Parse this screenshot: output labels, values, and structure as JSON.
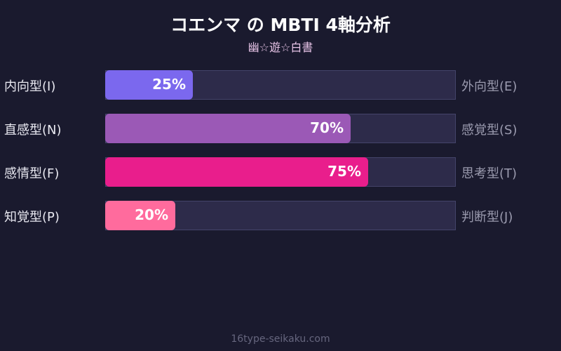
{
  "chart_data": {
    "type": "bar",
    "orientation": "horizontal",
    "title": "コエンマ の MBTI 4軸分析",
    "subtitle": "幽☆遊☆白書",
    "xlim": [
      0,
      100
    ],
    "rows": [
      {
        "left_label": "内向型(I)",
        "right_label": "外向型(E)",
        "value": 25,
        "value_label": "25%",
        "color": "#7b68ee"
      },
      {
        "left_label": "直感型(N)",
        "right_label": "感覚型(S)",
        "value": 70,
        "value_label": "70%",
        "color": "#9b59b6"
      },
      {
        "left_label": "感情型(F)",
        "right_label": "思考型(T)",
        "value": 75,
        "value_label": "75%",
        "color": "#e91e8c"
      },
      {
        "left_label": "知覚型(P)",
        "right_label": "判断型(J)",
        "value": 20,
        "value_label": "20%",
        "color": "#ff6b9d"
      }
    ]
  },
  "footer": "16type-seikaku.com"
}
